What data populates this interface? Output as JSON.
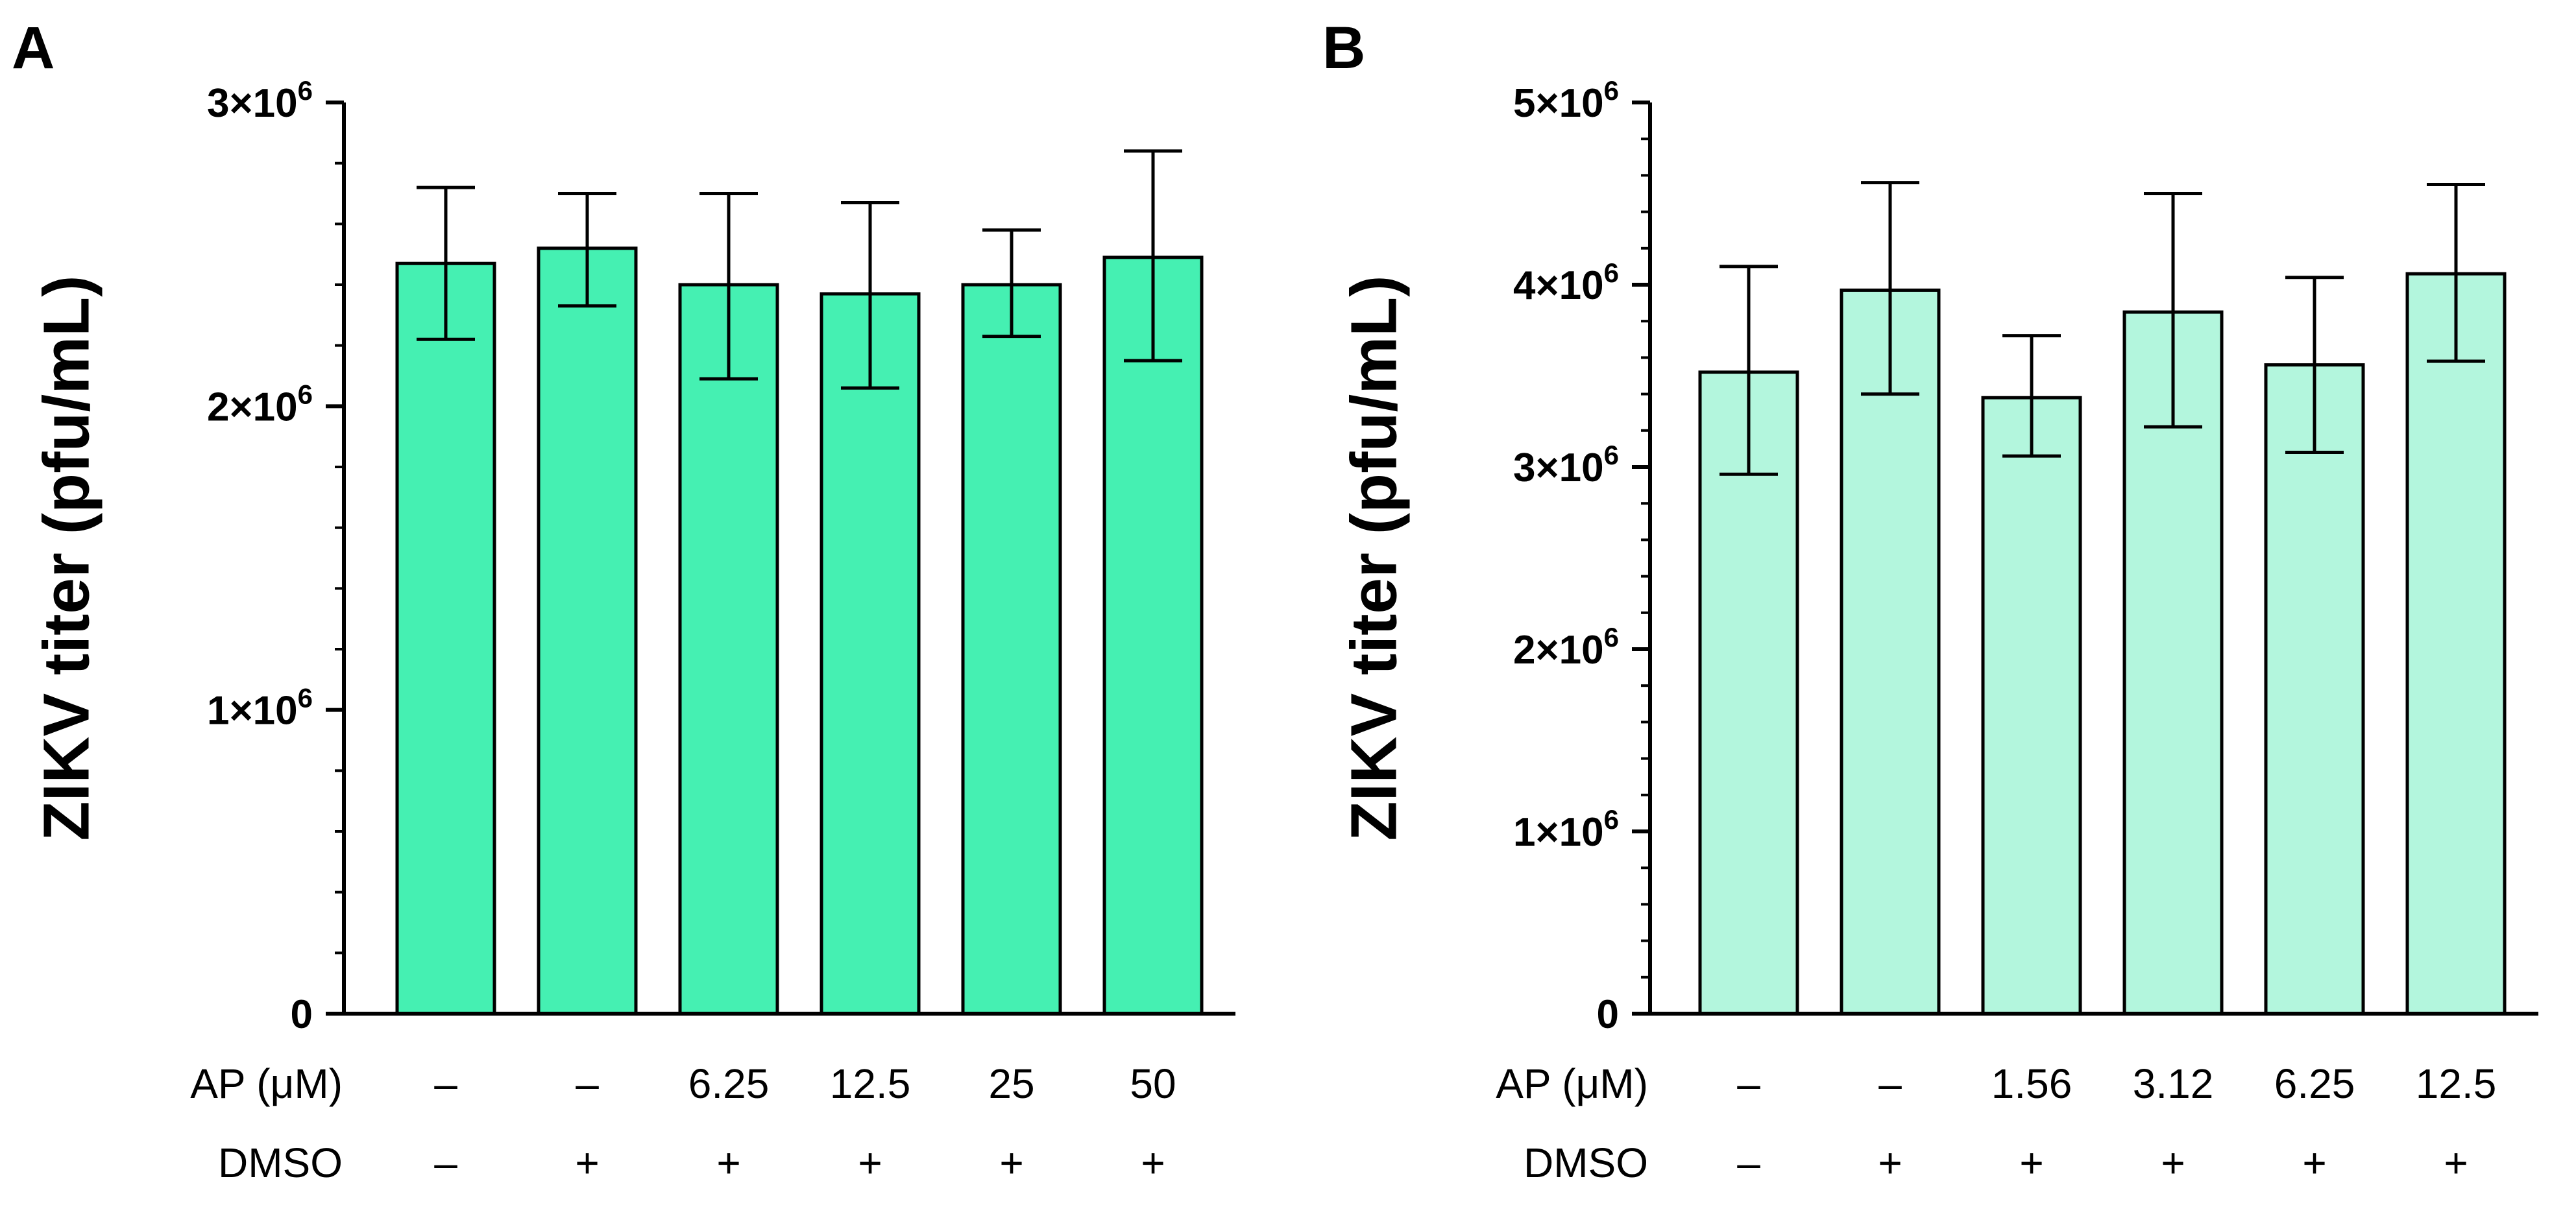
{
  "chart_data": [
    {
      "type": "bar",
      "panel": "A",
      "ylabel": "ZIKV titer (pfu/mL)",
      "ylim": [
        0,
        3000000
      ],
      "yticks": [
        {
          "value": 0,
          "label": "0"
        },
        {
          "value": 1000000,
          "label": "1×10",
          "exp": "6"
        },
        {
          "value": 2000000,
          "label": "2×10",
          "exp": "6"
        },
        {
          "value": 3000000,
          "label": "3×10",
          "exp": "6"
        }
      ],
      "row_labels": [
        "AP (μM)",
        "DMSO"
      ],
      "categories": [
        {
          "ap": "–",
          "dmso": "–"
        },
        {
          "ap": "–",
          "dmso": "+"
        },
        {
          "ap": "6.25",
          "dmso": "+"
        },
        {
          "ap": "12.5",
          "dmso": "+"
        },
        {
          "ap": "25",
          "dmso": "+"
        },
        {
          "ap": "50",
          "dmso": "+"
        }
      ],
      "values": [
        2470000,
        2520000,
        2400000,
        2370000,
        2400000,
        2490000
      ],
      "error_low": [
        2220000,
        2330000,
        2090000,
        2060000,
        2230000,
        2150000
      ],
      "error_high": [
        2720000,
        2700000,
        2700000,
        2670000,
        2580000,
        2840000
      ],
      "color": "#45f0b2",
      "grid": false
    },
    {
      "type": "bar",
      "panel": "B",
      "ylabel": "ZIKV titer (pfu/mL)",
      "ylim": [
        0,
        5000000
      ],
      "yticks": [
        {
          "value": 0,
          "label": "0"
        },
        {
          "value": 1000000,
          "label": "1×10",
          "exp": "6"
        },
        {
          "value": 2000000,
          "label": "2×10",
          "exp": "6"
        },
        {
          "value": 3000000,
          "label": "3×10",
          "exp": "6"
        },
        {
          "value": 4000000,
          "label": "4×10",
          "exp": "6"
        },
        {
          "value": 5000000,
          "label": "5×10",
          "exp": "6"
        }
      ],
      "row_labels": [
        "AP (μM)",
        "DMSO"
      ],
      "categories": [
        {
          "ap": "–",
          "dmso": "–"
        },
        {
          "ap": "–",
          "dmso": "+"
        },
        {
          "ap": "1.56",
          "dmso": "+"
        },
        {
          "ap": "3.12",
          "dmso": "+"
        },
        {
          "ap": "6.25",
          "dmso": "+"
        },
        {
          "ap": "12.5",
          "dmso": "+"
        }
      ],
      "values": [
        3520000,
        3970000,
        3380000,
        3850000,
        3560000,
        4060000
      ],
      "error_low": [
        2960000,
        3400000,
        3060000,
        3220000,
        3080000,
        3580000
      ],
      "error_high": [
        4100000,
        4560000,
        3720000,
        4500000,
        4040000,
        4550000
      ],
      "color": "#b3f6dd",
      "grid": false
    }
  ]
}
